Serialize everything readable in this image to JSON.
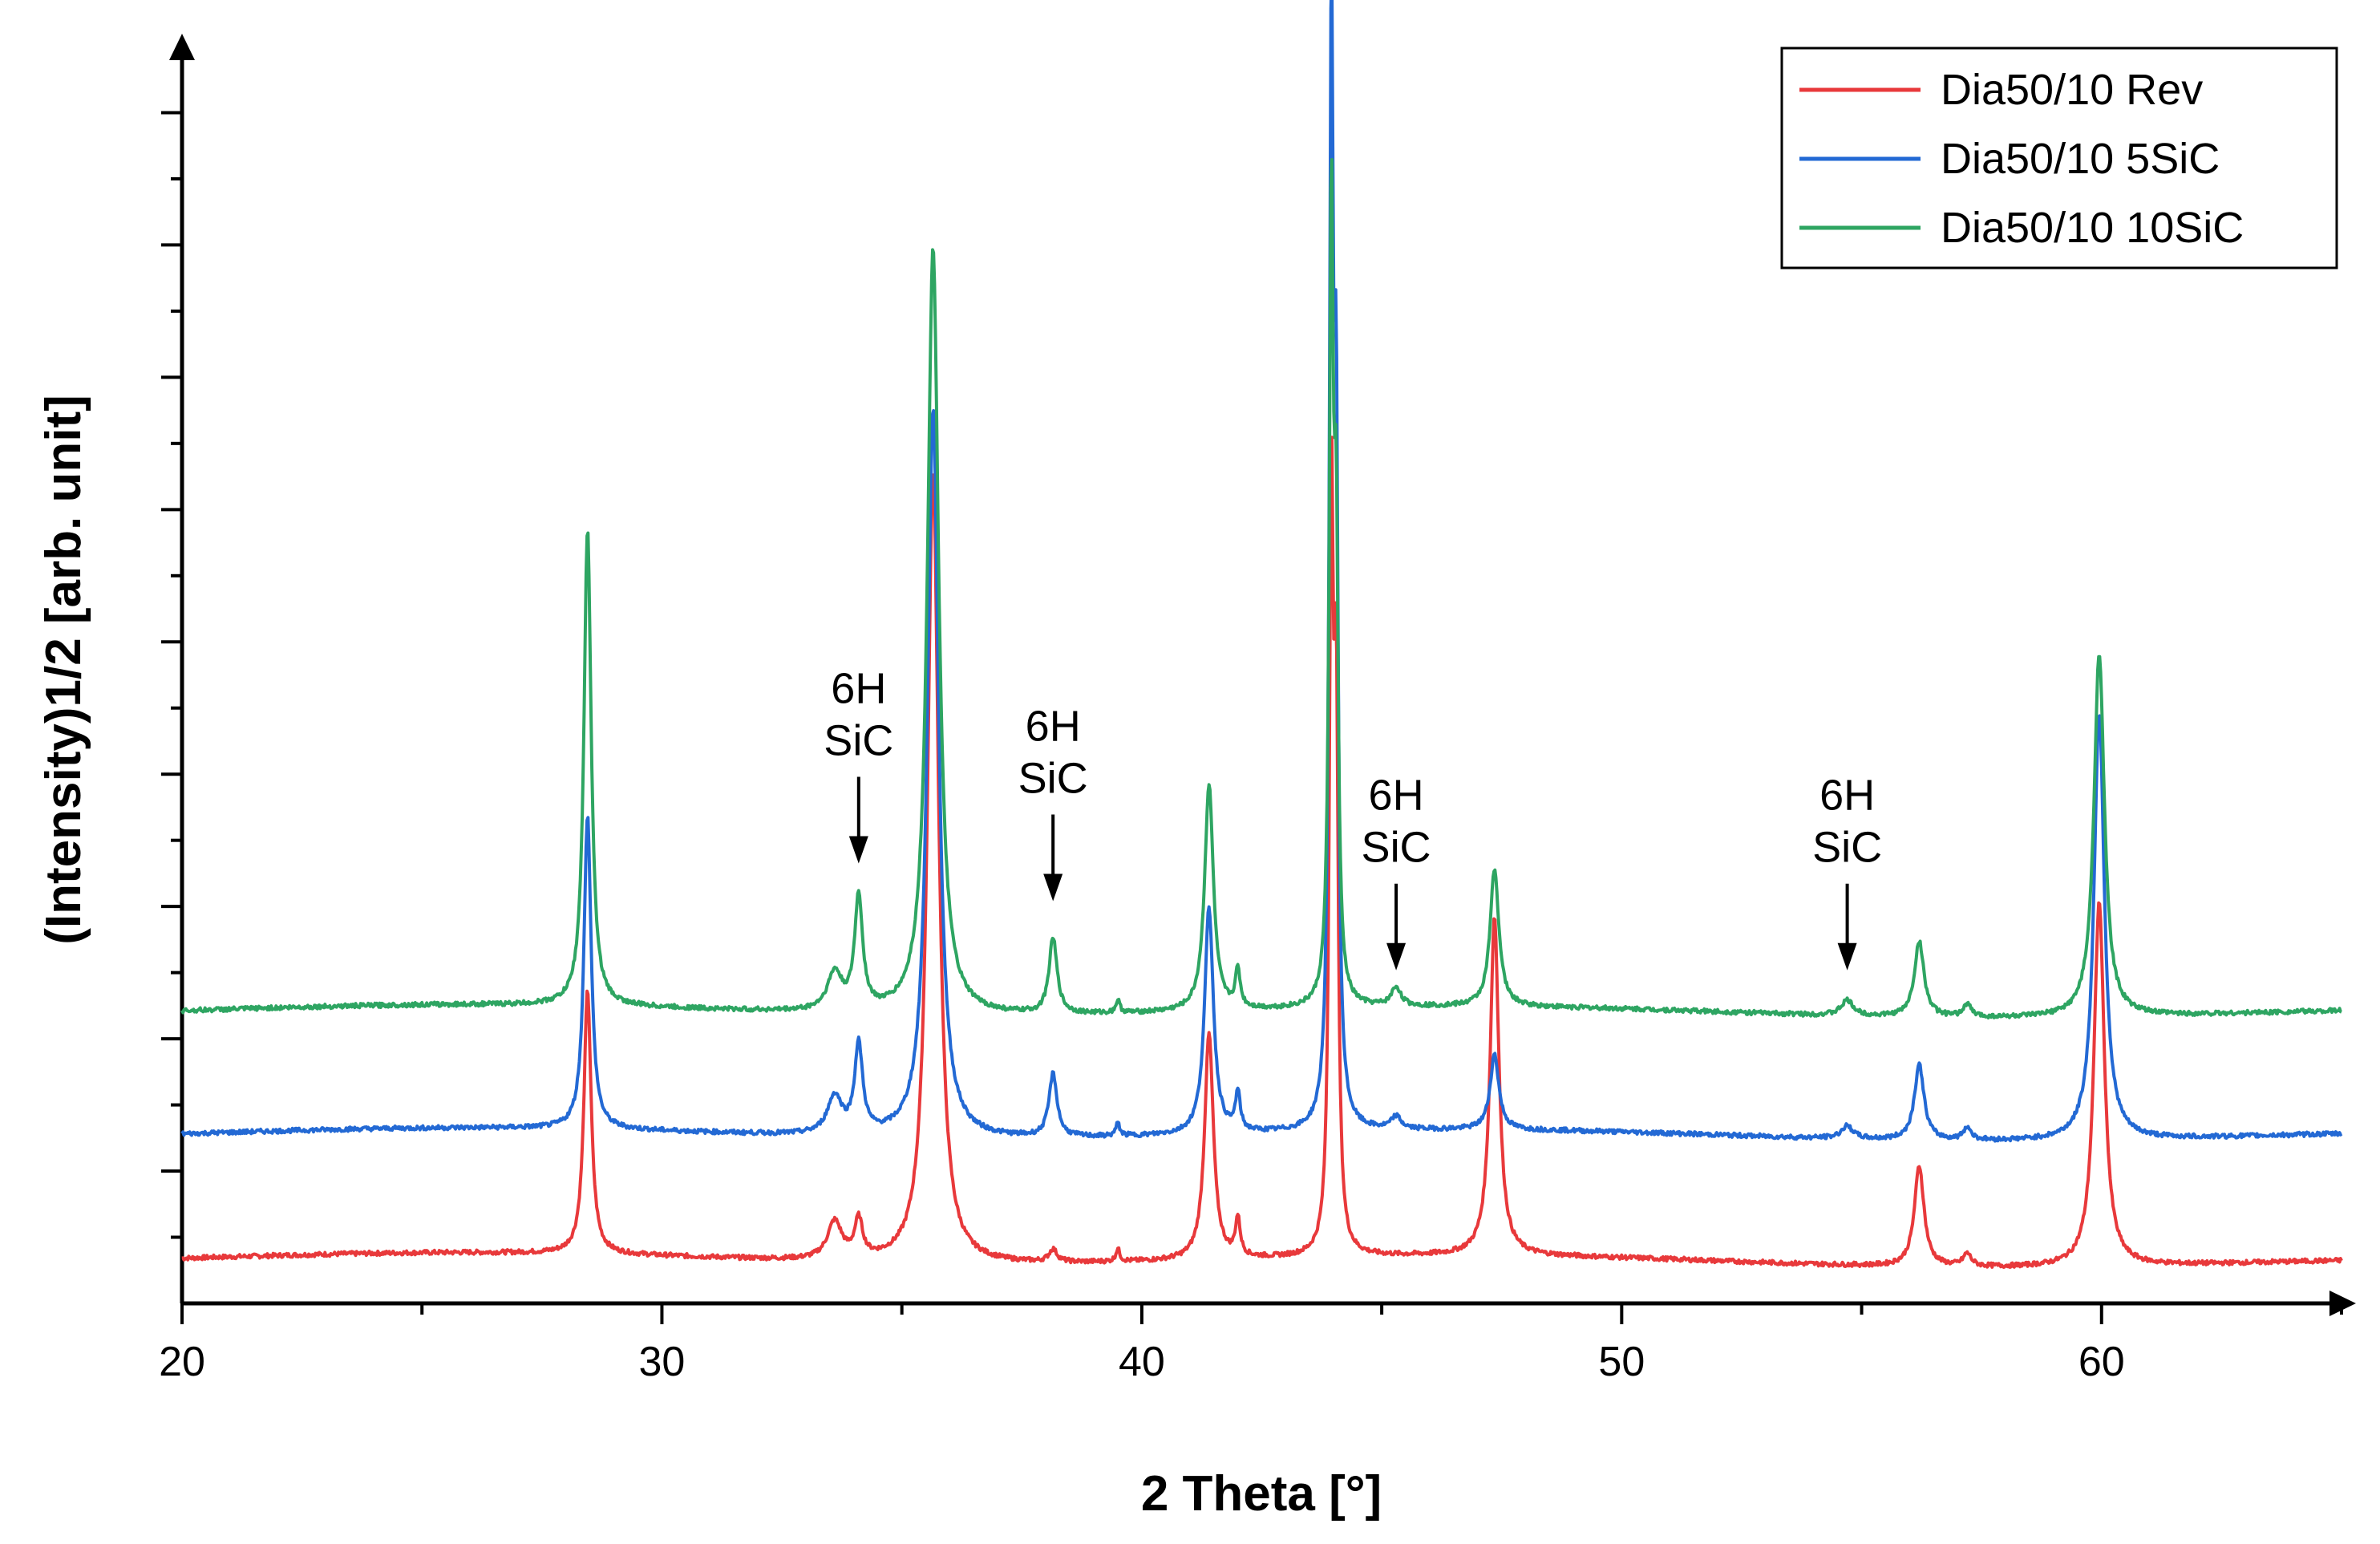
{
  "chart_data": {
    "type": "line",
    "title": "",
    "xlabel": "2 Theta [°]",
    "ylabel": "(Intensity)1/2 [arb. unit]",
    "xlim": [
      20,
      65
    ],
    "ylim": [
      0,
      1
    ],
    "xticks": [
      20,
      30,
      40,
      50,
      60
    ],
    "yticks_labeled": false,
    "grid": false,
    "legend": "top-right",
    "colors": {
      "rev": "#e8393b",
      "sic5": "#2369d4",
      "sic10": "#2ea562",
      "axis": "#000000"
    },
    "peaks": [
      {
        "c": 28.45,
        "w": 0.09
      },
      {
        "c": 33.6,
        "w": 0.18
      },
      {
        "c": 34.1,
        "w": 0.1
      },
      {
        "c": 35.65,
        "w": 0.14
      },
      {
        "c": 38.15,
        "w": 0.1
      },
      {
        "c": 39.5,
        "w": 0.05
      },
      {
        "c": 41.4,
        "w": 0.11
      },
      {
        "c": 42.0,
        "w": 0.06
      },
      {
        "c": 43.95,
        "w": 0.05
      },
      {
        "c": 44.05,
        "w": 0.05
      },
      {
        "c": 45.3,
        "w": 0.12
      },
      {
        "c": 47.35,
        "w": 0.11
      },
      {
        "c": 54.7,
        "w": 0.15
      },
      {
        "c": 56.2,
        "w": 0.12
      },
      {
        "c": 57.2,
        "w": 0.1
      },
      {
        "c": 59.95,
        "w": 0.13
      }
    ],
    "series": [
      {
        "name": "Dia50/10 Rev",
        "color_key": "rev",
        "baseline": 0.037,
        "heights": [
          0.21,
          0.03,
          0.03,
          0.63,
          0.01,
          0.01,
          0.18,
          0.03,
          0.58,
          0.4,
          0.0,
          0.27,
          0.0,
          0.08,
          0.01,
          0.29
        ]
      },
      {
        "name": "Dia50/10 5SiC",
        "color_key": "sic5",
        "baseline": 0.136,
        "heights": [
          0.25,
          0.03,
          0.07,
          0.58,
          0.05,
          0.01,
          0.18,
          0.03,
          0.84,
          0.49,
          0.01,
          0.06,
          0.01,
          0.06,
          0.01,
          0.34
        ]
      },
      {
        "name": "Dia50/10 10SiC",
        "color_key": "sic10",
        "baseline": 0.234,
        "heights": [
          0.38,
          0.03,
          0.09,
          0.61,
          0.06,
          0.01,
          0.18,
          0.03,
          0.62,
          0.33,
          0.015,
          0.11,
          0.012,
          0.06,
          0.01,
          0.29
        ]
      }
    ],
    "annotations": [
      {
        "line1": "6H",
        "line2": "SiC",
        "x": 34.1,
        "y_tip": 0.35
      },
      {
        "line1": "6H",
        "line2": "SiC",
        "x": 38.15,
        "y_tip": 0.32
      },
      {
        "line1": "6H",
        "line2": "SiC",
        "x": 45.3,
        "y_tip": 0.265
      },
      {
        "line1": "6H",
        "line2": "SiC",
        "x": 54.7,
        "y_tip": 0.265
      }
    ]
  }
}
